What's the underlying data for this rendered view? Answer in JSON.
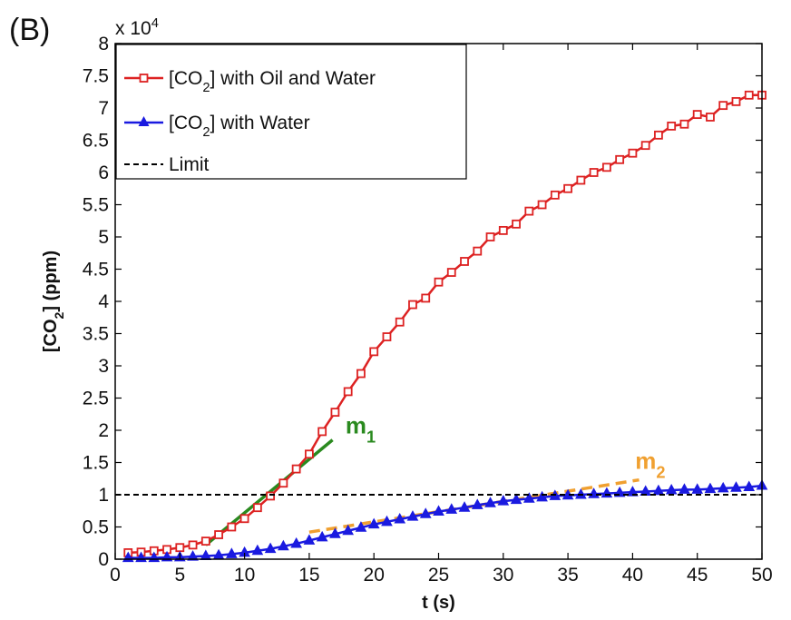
{
  "panel_label": "(B)",
  "chart_data": {
    "type": "line",
    "exponent_label": {
      "base": "x 10",
      "power": "4"
    },
    "xlabel": "t (s)",
    "ylabel": {
      "main": "[CO",
      "sub": "2",
      "end": "] (ppm)"
    },
    "xlim": [
      0,
      50
    ],
    "ylim": [
      0,
      8
    ],
    "xticks": [
      0,
      5,
      10,
      15,
      20,
      25,
      30,
      35,
      40,
      45,
      50
    ],
    "yticks": [
      0,
      0.5,
      1,
      1.5,
      2,
      2.5,
      3,
      3.5,
      4,
      4.5,
      5,
      5.5,
      6,
      6.5,
      7,
      7.5,
      8
    ],
    "yticklabels": [
      "0",
      "0.5",
      "1",
      "1.5",
      "2",
      "2.5",
      "3",
      "3.5",
      "4",
      "4.5",
      "5",
      "5.5",
      "6",
      "6.5",
      "7",
      "7.5",
      "8"
    ],
    "grid": false,
    "legend_position": "top-left",
    "series": [
      {
        "name": "[CO2] with Oil and Water",
        "label_parts": {
          "pre": "[CO",
          "sub": "2",
          "post": "] with Oil and Water"
        },
        "color": "#dd2222",
        "marker": "square",
        "x": [
          1,
          2,
          3,
          4,
          5,
          6,
          7,
          8,
          9,
          10,
          11,
          12,
          13,
          14,
          15,
          16,
          17,
          18,
          19,
          20,
          21,
          22,
          23,
          24,
          25,
          26,
          27,
          28,
          29,
          30,
          31,
          32,
          33,
          34,
          35,
          36,
          37,
          38,
          39,
          40,
          41,
          42,
          43,
          44,
          45,
          46,
          47,
          48,
          49,
          50
        ],
        "y": [
          0.1,
          0.11,
          0.13,
          0.15,
          0.18,
          0.22,
          0.28,
          0.38,
          0.5,
          0.63,
          0.8,
          0.98,
          1.18,
          1.4,
          1.63,
          1.98,
          2.28,
          2.6,
          2.88,
          3.22,
          3.45,
          3.68,
          3.95,
          4.05,
          4.3,
          4.45,
          4.62,
          4.78,
          5.0,
          5.1,
          5.2,
          5.4,
          5.5,
          5.65,
          5.75,
          5.88,
          6.0,
          6.08,
          6.2,
          6.3,
          6.42,
          6.58,
          6.72,
          6.75,
          6.9,
          6.86,
          7.04,
          7.1,
          7.2,
          7.2
        ]
      },
      {
        "name": "[CO2] with Water",
        "label_parts": {
          "pre": "[CO",
          "sub": "2",
          "post": "] with Water"
        },
        "color": "#1a1ae0",
        "marker": "triangle",
        "x": [
          1,
          2,
          3,
          4,
          5,
          6,
          7,
          8,
          9,
          10,
          11,
          12,
          13,
          14,
          15,
          16,
          17,
          18,
          19,
          20,
          21,
          22,
          23,
          24,
          25,
          26,
          27,
          28,
          29,
          30,
          31,
          32,
          33,
          34,
          35,
          36,
          37,
          38,
          39,
          40,
          41,
          42,
          43,
          44,
          45,
          46,
          47,
          48,
          49,
          50
        ],
        "y": [
          0.02,
          0.02,
          0.02,
          0.03,
          0.03,
          0.04,
          0.05,
          0.06,
          0.08,
          0.1,
          0.13,
          0.16,
          0.2,
          0.24,
          0.29,
          0.34,
          0.39,
          0.44,
          0.49,
          0.54,
          0.58,
          0.62,
          0.66,
          0.7,
          0.74,
          0.77,
          0.8,
          0.84,
          0.87,
          0.9,
          0.92,
          0.94,
          0.96,
          0.98,
          0.99,
          1.0,
          1.01,
          1.02,
          1.03,
          1.04,
          1.05,
          1.06,
          1.07,
          1.08,
          1.08,
          1.09,
          1.1,
          1.11,
          1.12,
          1.14
        ]
      },
      {
        "name": "Limit",
        "color": "#000000",
        "style": "dashed",
        "x": [
          0,
          50
        ],
        "y": [
          1,
          1
        ]
      }
    ],
    "annotations": [
      {
        "label": "m",
        "sub": "1",
        "color": "#2a8a1f",
        "line": {
          "x": [
            7,
            16.8
          ],
          "y": [
            0.22,
            1.85
          ]
        },
        "text_at": [
          17.8,
          1.95
        ]
      },
      {
        "label": "m",
        "sub": "2",
        "color": "#f0a030",
        "line": {
          "x": [
            15,
            40.5
          ],
          "y": [
            0.42,
            1.23
          ]
        },
        "text_at": [
          40.2,
          1.4
        ]
      }
    ]
  }
}
